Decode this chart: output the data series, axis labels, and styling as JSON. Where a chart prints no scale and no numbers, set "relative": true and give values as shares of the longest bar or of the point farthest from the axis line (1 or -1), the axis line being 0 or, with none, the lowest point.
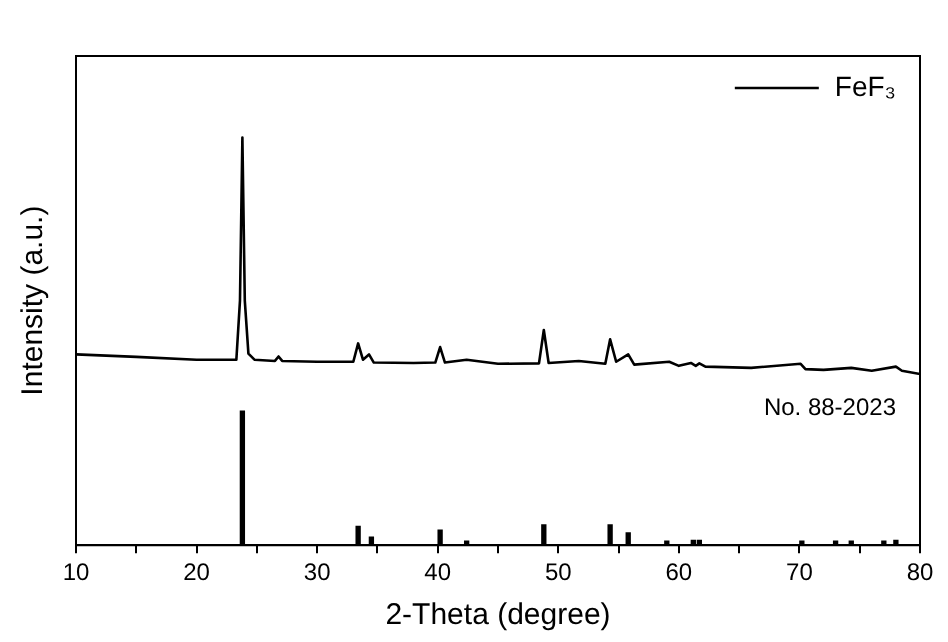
{
  "chart_data": {
    "type": "line",
    "xlabel": "2-Theta (degree)",
    "ylabel": "Intensity (a.u.)",
    "relative": true,
    "xlim": [
      10,
      80
    ],
    "xticks": [
      10,
      {
        "value": 15,
        "label": null
      },
      20,
      {
        "value": 25,
        "label": null
      },
      30,
      {
        "value": 35,
        "label": null
      },
      40,
      {
        "value": 45,
        "label": null
      },
      50,
      {
        "value": 55,
        "label": null
      },
      60,
      {
        "value": 65,
        "label": null
      },
      70,
      {
        "value": 75,
        "label": null
      },
      80
    ],
    "series": [
      {
        "name": "FeF₃",
        "color": "#000000",
        "x": [
          10,
          15,
          20,
          23.3,
          23.6,
          23.8,
          24.0,
          24.3,
          24.8,
          26.5,
          26.8,
          27.1,
          30,
          33.0,
          33.4,
          33.8,
          34.3,
          34.7,
          38,
          39.8,
          40.2,
          40.6,
          42.4,
          45,
          48.4,
          48.8,
          49.2,
          51.7,
          53.9,
          54.3,
          54.8,
          55.8,
          56.3,
          59.2,
          60,
          61.0,
          61.4,
          61.7,
          62.2,
          66,
          70.1,
          70.5,
          72,
          74.3,
          76,
          78,
          78.5,
          80
        ],
        "values": [
          0.468,
          0.462,
          0.455,
          0.455,
          0.6,
          1,
          0.6,
          0.47,
          0.455,
          0.452,
          0.463,
          0.452,
          0.45,
          0.45,
          0.495,
          0.455,
          0.468,
          0.448,
          0.447,
          0.448,
          0.486,
          0.448,
          0.455,
          0.445,
          0.446,
          0.528,
          0.447,
          0.452,
          0.445,
          0.505,
          0.45,
          0.468,
          0.443,
          0.45,
          0.44,
          0.447,
          0.44,
          0.446,
          0.438,
          0.435,
          0.445,
          0.432,
          0.43,
          0.435,
          0.428,
          0.438,
          0.428,
          0.42
        ]
      },
      {
        "type": "bar",
        "color": "#000000",
        "x": [
          23.8,
          33.4,
          34.5,
          40.2,
          42.4,
          48.8,
          54.3,
          55.8,
          59.0,
          61.2,
          61.7,
          70.2,
          73.0,
          74.3,
          77.0,
          78.0
        ],
        "values": [
          0.329,
          0.046,
          0.02,
          0.037,
          0.01,
          0.05,
          0.05,
          0.03,
          0.01,
          0.012,
          0.012,
          0.01,
          0.01,
          0.01,
          0.01,
          0.012
        ]
      }
    ],
    "annotations": [
      "No. 88-2023"
    ],
    "legend": "top right",
    "grid": false,
    "marker": "none",
    "line_style": "solid"
  }
}
